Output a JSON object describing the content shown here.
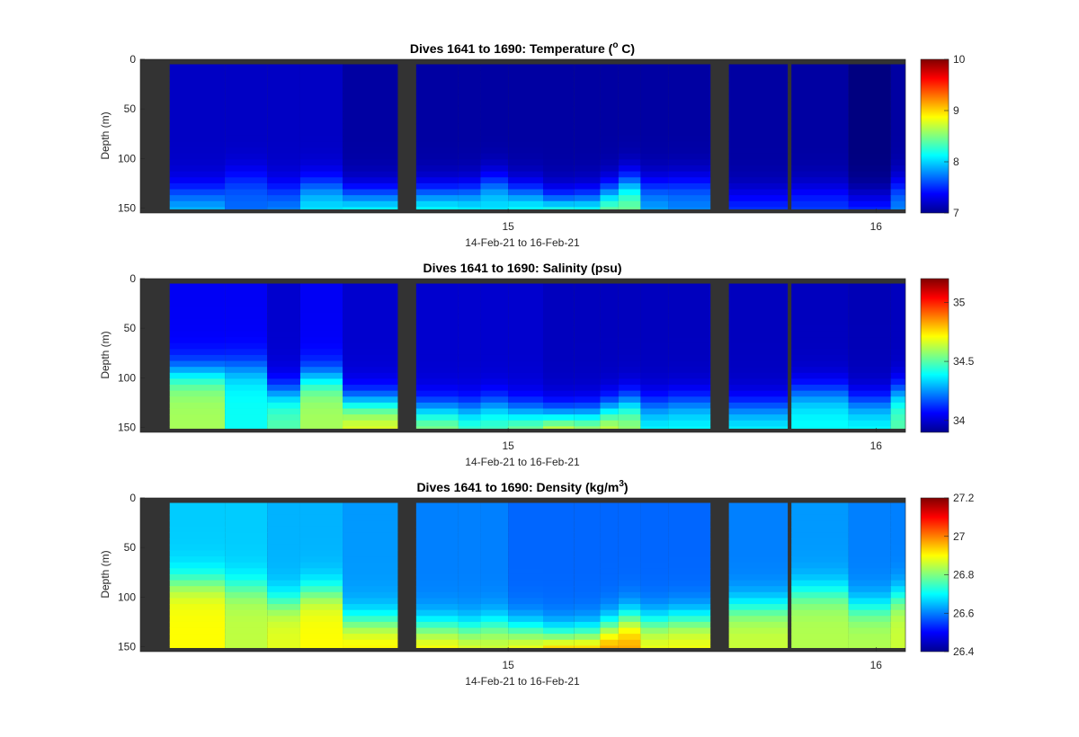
{
  "chart_data": [
    {
      "type": "heatmap",
      "title_main": "Dives 1641 to 1690: Temperature (",
      "title_sup": "o",
      "title_end": " C)",
      "xlabel": "14-Feb-21 to 16-Feb-21",
      "ylabel": "Depth (m)",
      "xticks": [
        15,
        16
      ],
      "yticks": [
        0,
        50,
        100,
        150
      ],
      "ylim": [
        0,
        155
      ],
      "colorbar": {
        "range": [
          7,
          10
        ],
        "ticks": [
          10,
          9,
          8,
          7
        ]
      },
      "no_data_color": "#333333",
      "profiles": [
        {
          "x": 14.16,
          "mix": 7.2,
          "thermo": 135,
          "bottom": 8.0
        },
        {
          "x": 14.3,
          "mix": 7.2,
          "thermo": 120,
          "bottom": 7.7
        },
        {
          "x": 14.39,
          "mix": 7.2,
          "thermo": 132,
          "bottom": 7.8
        },
        {
          "x": 14.48,
          "mix": 7.2,
          "thermo": 128,
          "bottom": 8.1
        },
        {
          "x": 14.62,
          "mix": 7.1,
          "thermo": 138,
          "bottom": 8.3
        },
        {
          "x": 14.83,
          "mix": 7.1,
          "thermo": 136,
          "bottom": 8.3
        },
        {
          "x": 14.9,
          "mix": 7.1,
          "thermo": 134,
          "bottom": 8.2
        },
        {
          "x": 14.95,
          "mix": 7.1,
          "thermo": 125,
          "bottom": 8.1
        },
        {
          "x": 15.05,
          "mix": 7.1,
          "thermo": 135,
          "bottom": 8.3
        },
        {
          "x": 15.14,
          "mix": 7.1,
          "thermo": 145,
          "bottom": 8.7
        },
        {
          "x": 15.22,
          "mix": 7.1,
          "thermo": 142,
          "bottom": 8.5
        },
        {
          "x": 15.28,
          "mix": 7.1,
          "thermo": 135,
          "bottom": 8.6
        },
        {
          "x": 15.32,
          "mix": 7.1,
          "thermo": 125,
          "bottom": 8.5
        },
        {
          "x": 15.4,
          "mix": 7.1,
          "thermo": 128,
          "bottom": 7.9
        },
        {
          "x": 15.47,
          "mix": 7.1,
          "thermo": 125,
          "bottom": 7.8
        },
        {
          "x": 15.68,
          "mix": 7.1,
          "thermo": 138,
          "bottom": 7.6
        },
        {
          "x": 15.85,
          "mix": 7.1,
          "thermo": 133,
          "bottom": 7.6
        },
        {
          "x": 16.0,
          "mix": 7.0,
          "thermo": 140,
          "bottom": 7.6
        },
        {
          "x": 16.08,
          "mix": 7.1,
          "thermo": 128,
          "bottom": 7.8
        }
      ]
    },
    {
      "type": "heatmap",
      "title_main": "Dives 1641 to 1690: Salinity (psu)",
      "title_sup": "",
      "title_end": "",
      "xlabel": "14-Feb-21 to 16-Feb-21",
      "ylabel": "Depth (m)",
      "xticks": [
        15,
        16
      ],
      "yticks": [
        0,
        50,
        100,
        150
      ],
      "ylim": [
        0,
        155
      ],
      "colorbar": {
        "range": [
          33.9,
          35.2
        ],
        "ticks": [
          35,
          34.5,
          34
        ]
      },
      "no_data_color": "#333333",
      "profiles": [
        {
          "x": 14.16,
          "mix": 34.05,
          "thermo": 95,
          "bottom": 34.6
        },
        {
          "x": 14.3,
          "mix": 34.05,
          "thermo": 90,
          "bottom": 34.4
        },
        {
          "x": 14.39,
          "mix": 34.0,
          "thermo": 115,
          "bottom": 34.5
        },
        {
          "x": 14.48,
          "mix": 34.05,
          "thermo": 100,
          "bottom": 34.6
        },
        {
          "x": 14.62,
          "mix": 34.0,
          "thermo": 125,
          "bottom": 34.7
        },
        {
          "x": 14.83,
          "mix": 34.0,
          "thermo": 132,
          "bottom": 34.6
        },
        {
          "x": 14.9,
          "mix": 34.0,
          "thermo": 132,
          "bottom": 34.5
        },
        {
          "x": 14.95,
          "mix": 34.0,
          "thermo": 128,
          "bottom": 34.5
        },
        {
          "x": 15.05,
          "mix": 34.0,
          "thermo": 135,
          "bottom": 34.6
        },
        {
          "x": 15.14,
          "mix": 33.98,
          "thermo": 140,
          "bottom": 34.8
        },
        {
          "x": 15.22,
          "mix": 33.98,
          "thermo": 138,
          "bottom": 34.7
        },
        {
          "x": 15.28,
          "mix": 33.98,
          "thermo": 132,
          "bottom": 34.7
        },
        {
          "x": 15.32,
          "mix": 33.98,
          "thermo": 125,
          "bottom": 34.6
        },
        {
          "x": 15.4,
          "mix": 33.98,
          "thermo": 128,
          "bottom": 34.4
        },
        {
          "x": 15.47,
          "mix": 33.98,
          "thermo": 125,
          "bottom": 34.4
        },
        {
          "x": 15.68,
          "mix": 33.98,
          "thermo": 130,
          "bottom": 34.4
        },
        {
          "x": 15.85,
          "mix": 33.98,
          "thermo": 115,
          "bottom": 34.4
        },
        {
          "x": 16.0,
          "mix": 33.97,
          "thermo": 125,
          "bottom": 34.4
        },
        {
          "x": 16.08,
          "mix": 33.98,
          "thermo": 115,
          "bottom": 34.5
        }
      ]
    },
    {
      "type": "heatmap",
      "title_main": "Dives 1641 to 1690: Density (kg/m",
      "title_sup": "3",
      "title_end": ")",
      "xlabel": "14-Feb-21 to 16-Feb-21",
      "ylabel": "Depth (m)",
      "xticks": [
        15,
        16
      ],
      "yticks": [
        0,
        50,
        100,
        150
      ],
      "ylim": [
        0,
        155
      ],
      "colorbar": {
        "range": [
          26.4,
          27.2
        ],
        "ticks": [
          27.2,
          27,
          26.8,
          26.6,
          26.4
        ]
      },
      "no_data_color": "#333333",
      "profiles": [
        {
          "x": 14.16,
          "mix": 26.66,
          "thermo": 85,
          "bottom": 26.9
        },
        {
          "x": 14.3,
          "mix": 26.66,
          "thermo": 90,
          "bottom": 26.85
        },
        {
          "x": 14.39,
          "mix": 26.64,
          "thermo": 105,
          "bottom": 26.88
        },
        {
          "x": 14.48,
          "mix": 26.64,
          "thermo": 95,
          "bottom": 26.9
        },
        {
          "x": 14.62,
          "mix": 26.62,
          "thermo": 125,
          "bottom": 26.92
        },
        {
          "x": 14.83,
          "mix": 26.6,
          "thermo": 130,
          "bottom": 26.92
        },
        {
          "x": 14.9,
          "mix": 26.6,
          "thermo": 132,
          "bottom": 26.9
        },
        {
          "x": 14.95,
          "mix": 26.6,
          "thermo": 128,
          "bottom": 26.88
        },
        {
          "x": 15.05,
          "mix": 26.58,
          "thermo": 133,
          "bottom": 26.92
        },
        {
          "x": 15.14,
          "mix": 26.58,
          "thermo": 140,
          "bottom": 27.02
        },
        {
          "x": 15.22,
          "mix": 26.58,
          "thermo": 138,
          "bottom": 27.0
        },
        {
          "x": 15.28,
          "mix": 26.58,
          "thermo": 130,
          "bottom": 27.0
        },
        {
          "x": 15.32,
          "mix": 26.58,
          "thermo": 122,
          "bottom": 26.98
        },
        {
          "x": 15.4,
          "mix": 26.58,
          "thermo": 125,
          "bottom": 26.9
        },
        {
          "x": 15.47,
          "mix": 26.58,
          "thermo": 122,
          "bottom": 26.9
        },
        {
          "x": 15.68,
          "mix": 26.6,
          "thermo": 110,
          "bottom": 26.86
        },
        {
          "x": 15.85,
          "mix": 26.62,
          "thermo": 95,
          "bottom": 26.84
        },
        {
          "x": 16.0,
          "mix": 26.6,
          "thermo": 110,
          "bottom": 26.84
        },
        {
          "x": 16.08,
          "mix": 26.6,
          "thermo": 100,
          "bottom": 26.86
        }
      ]
    }
  ]
}
